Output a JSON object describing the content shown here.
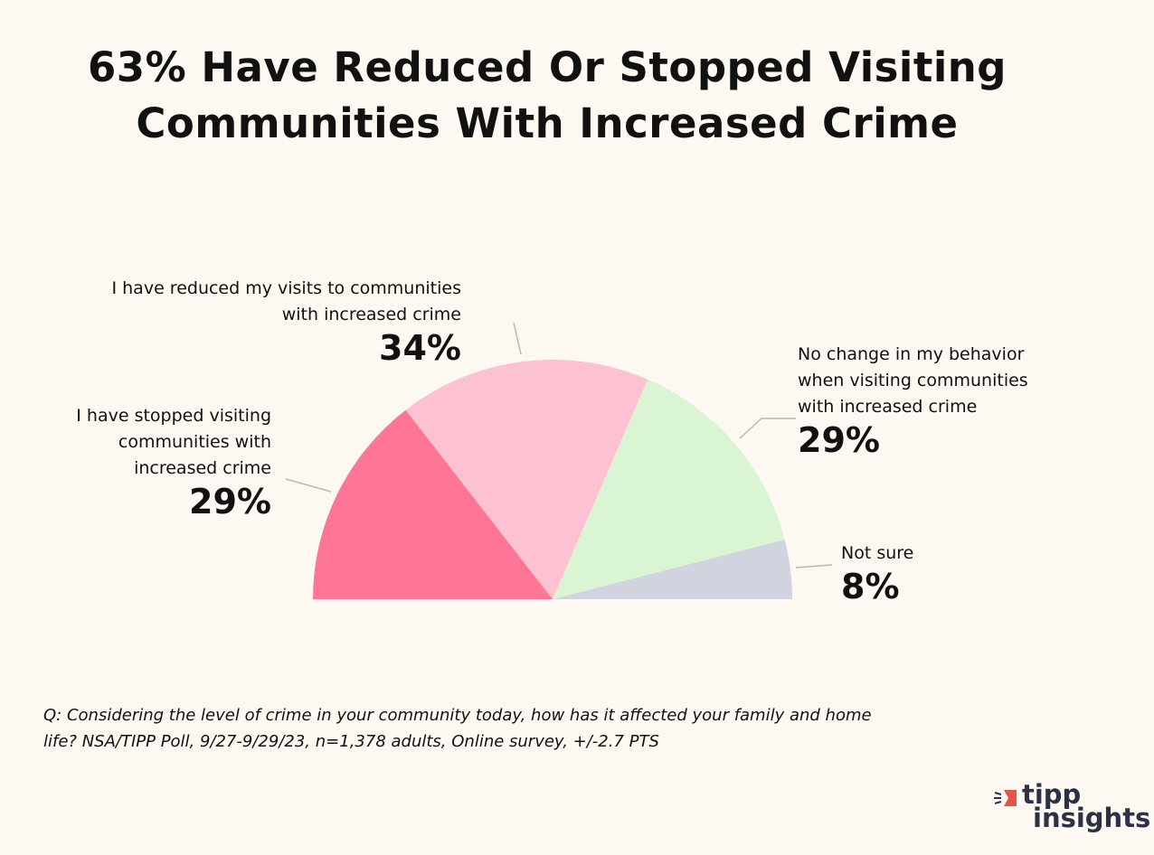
{
  "chart_data": {
    "type": "pie",
    "variant": "half-pie",
    "title": "63% Have Reduced Or Stopped Visiting Communities With Increased Crime",
    "categories": [
      "I have stopped visiting communities with increased crime",
      "I have reduced my visits to communities with increased crime",
      "No change in my behavior when visiting communities with increased crime",
      "Not sure"
    ],
    "values": [
      29,
      34,
      29,
      8
    ],
    "value_labels": [
      "29%",
      "34%",
      "29%",
      "8%"
    ],
    "colors": [
      "#ff7596",
      "#fdc2d2",
      "#d9f5d4",
      "#d1d3df"
    ],
    "legend": "none"
  },
  "title_lines": [
    "63% Have Reduced Or Stopped Visiting",
    "Communities With Increased Crime"
  ],
  "labels": {
    "stopped": [
      "I have stopped visiting",
      "communities with",
      "increased crime"
    ],
    "reduced": [
      "I have reduced my visits to communities",
      "with increased crime"
    ],
    "nochange": [
      "No change in my behavior",
      "when visiting communities",
      "with increased crime"
    ],
    "notsure": [
      "Not sure"
    ]
  },
  "footnote": [
    "Q:  Considering the level of crime in your community today, how has it affected your family and home",
    "life? NSA/TIPP Poll, 9/27-9/29/23, n=1,378 adults, Online survey, +/-2.7 PTS"
  ],
  "logo": {
    "line1": "tipp",
    "line2": "insights",
    "accent": "#e8524a"
  }
}
